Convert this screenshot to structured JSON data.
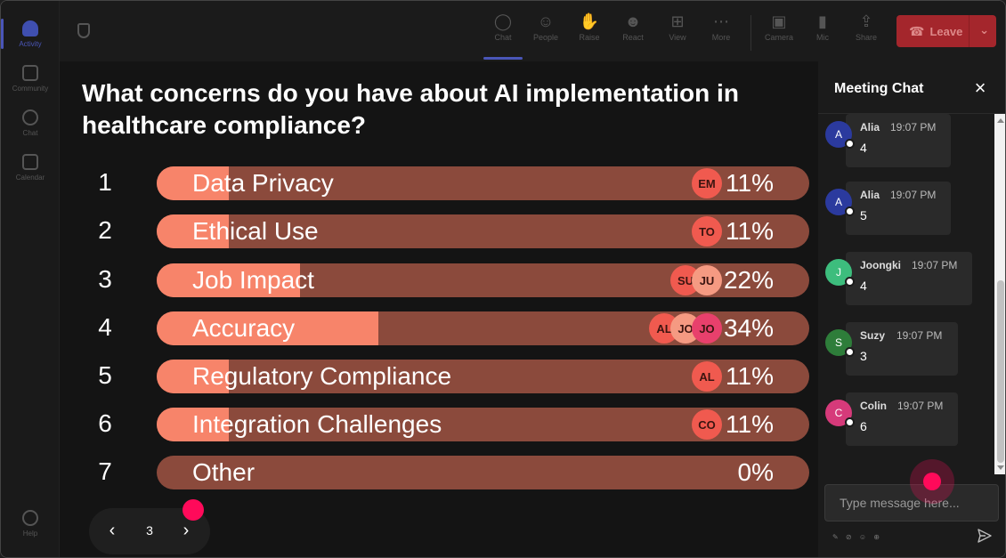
{
  "rail": {
    "items": [
      {
        "label": "Activity",
        "icon": "bell-icon",
        "active": true
      },
      {
        "label": "Community",
        "icon": "community-icon"
      },
      {
        "label": "Chat",
        "icon": "chat-icon"
      },
      {
        "label": "Calendar",
        "icon": "calendar-icon"
      }
    ],
    "help_label": "Help"
  },
  "toolbar": {
    "buttons": [
      {
        "label": "Chat",
        "icon": "chat-bubble-icon",
        "active": true
      },
      {
        "label": "People",
        "icon": "people-icon"
      },
      {
        "label": "Raise",
        "icon": "raise-hand-icon"
      },
      {
        "label": "React",
        "icon": "react-icon"
      },
      {
        "label": "View",
        "icon": "view-grid-icon"
      },
      {
        "label": "More",
        "icon": "more-icon"
      },
      {
        "label": "Camera",
        "icon": "camera-icon"
      },
      {
        "label": "Mic",
        "icon": "mic-icon"
      },
      {
        "label": "Share",
        "icon": "share-icon"
      }
    ],
    "leave_label": "Leave"
  },
  "poll": {
    "question": "What concerns do you have about AI implementation in healthcare compliance?",
    "options": [
      {
        "num": "1",
        "label": "Data Privacy",
        "percent_text": "11%",
        "value": 11,
        "voters": [
          "EM"
        ]
      },
      {
        "num": "2",
        "label": "Ethical Use",
        "percent_text": "11%",
        "value": 11,
        "voters": [
          "TO"
        ]
      },
      {
        "num": "3",
        "label": "Job Impact",
        "percent_text": "22%",
        "value": 22,
        "voters": [
          "SU",
          "JU"
        ]
      },
      {
        "num": "4",
        "label": "Accuracy",
        "percent_text": "34%",
        "value": 34,
        "voters": [
          "AL",
          "JO",
          "JO"
        ]
      },
      {
        "num": "5",
        "label": "Regulatory Compliance",
        "percent_text": "11%",
        "value": 11,
        "voters": [
          "AL"
        ]
      },
      {
        "num": "6",
        "label": "Integration Challenges",
        "percent_text": "11%",
        "value": 11,
        "voters": [
          "CO"
        ]
      },
      {
        "num": "7",
        "label": "Other",
        "percent_text": "0%",
        "value": 0,
        "voters": []
      }
    ]
  },
  "pager": {
    "page": "3"
  },
  "chat": {
    "title": "Meeting Chat",
    "messages": [
      {
        "initial": "A",
        "name": "Alia",
        "time": "19:07 PM",
        "text": "4",
        "color": "#2b3a9e"
      },
      {
        "initial": "A",
        "name": "Alia",
        "time": "19:07 PM",
        "text": "5",
        "color": "#2b3a9e"
      },
      {
        "initial": "J",
        "name": "Joongki",
        "time": "19:07 PM",
        "text": "4",
        "color": "#3dbd7d"
      },
      {
        "initial": "S",
        "name": "Suzy",
        "time": "19:07 PM",
        "text": "3",
        "color": "#2e7d3a"
      },
      {
        "initial": "C",
        "name": "Colin",
        "time": "19:07 PM",
        "text": "6",
        "color": "#d63a7a"
      }
    ],
    "input_placeholder": "Type message here..."
  }
}
